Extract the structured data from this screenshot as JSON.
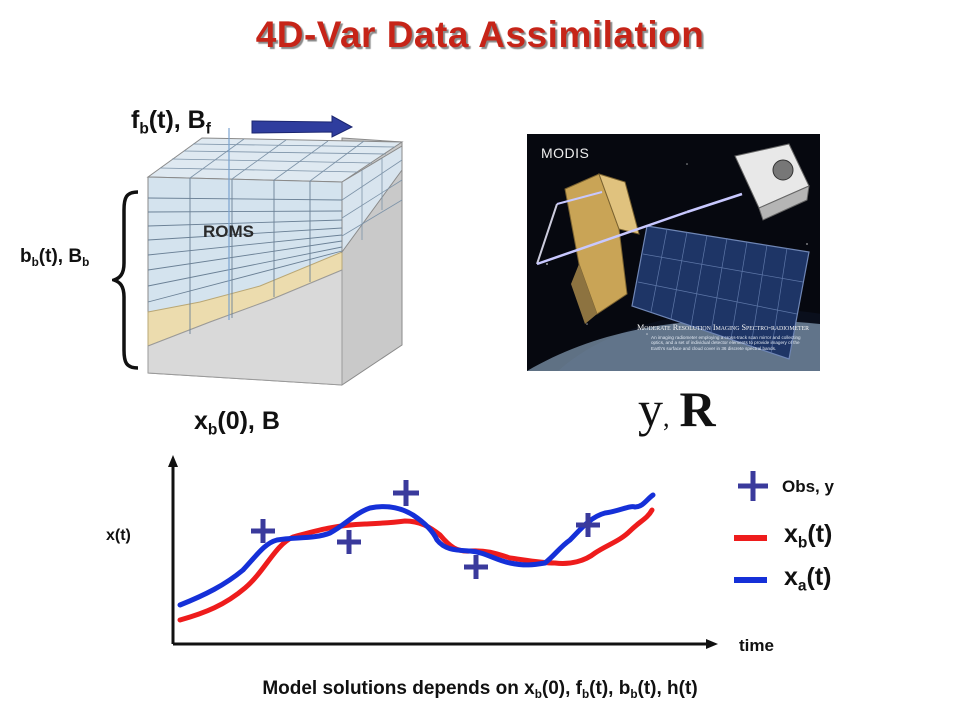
{
  "title": "4D-Var Data Assimilation",
  "labels": {
    "forcing": "f",
    "forcing_sub": "b",
    "forcing_tail": "(t), B",
    "forcing_sub2": "f",
    "boundary": "b",
    "boundary_sub": "b",
    "boundary_tail": "(t), B",
    "boundary_sub2": "b",
    "roms": "ROMS",
    "initial": "x",
    "initial_sub": "b",
    "initial_tail": "(0), B",
    "obs_y": "y",
    "obs_comma": ",",
    "obs_R": "R"
  },
  "satellite_panel": {
    "logo": "MODIS",
    "caption_title": "Moderate Resolution Imaging Spectro-radiometer",
    "caption_text": "An imaging radiometer employing a cross-track scan mirror and collecting optics, and a set of individual detector elements to provide imagery of the Earth's surface and cloud cover in 36 discrete spectral bands."
  },
  "chart": {
    "y_axis_label": "x(t)",
    "x_axis_label": "time",
    "legend_obs": "Obs, y",
    "legend_xb_main": "x",
    "legend_xb_sub": "b",
    "legend_xb_tail": "(t)",
    "legend_xa_main": "x",
    "legend_xa_sub": "a",
    "legend_xa_tail": "(t)"
  },
  "footer": {
    "p1": "Model solutions depends on x",
    "s1": "b",
    "p2": "(0), f",
    "s2": "b",
    "p3": "(t), b",
    "s3": "b",
    "p4": "(t), h(t)"
  },
  "colors": {
    "title": "#c62418",
    "obs": "#3a3a9c",
    "background_line": "#ee1c1c",
    "analysis_line": "#1530d8",
    "arrow": "#2f3d9e",
    "ocean_box": "#cfe0ec",
    "sediment": "#ecdcae"
  }
}
